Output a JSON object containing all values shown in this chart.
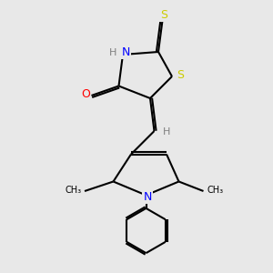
{
  "bg_color": "#e8e8e8",
  "atom_colors": {
    "C": "#000000",
    "N": "#0000ff",
    "O": "#ff0000",
    "S": "#cccc00",
    "H": "#808080"
  },
  "bond_color": "#000000",
  "bond_width": 1.5,
  "font_size_atom": 9,
  "font_size_h": 8
}
